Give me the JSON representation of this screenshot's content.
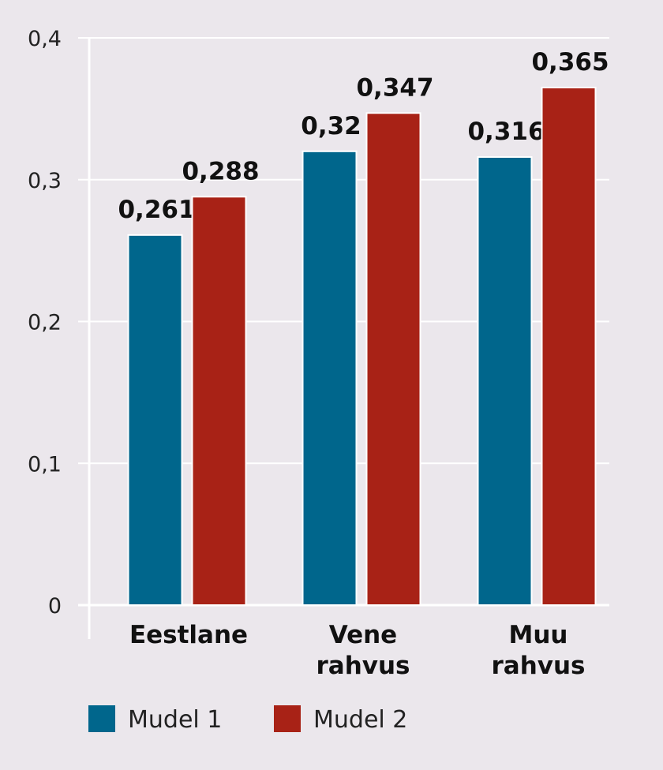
{
  "chart_data": {
    "type": "bar",
    "categories": [
      [
        "Eestlane"
      ],
      [
        "Vene",
        "rahvus"
      ],
      [
        "Muu",
        "rahvus"
      ]
    ],
    "series": [
      {
        "name": "Mudel 1",
        "color": "#00668c",
        "values": [
          0.261,
          0.32,
          0.316
        ],
        "labels": [
          "0,261",
          "0,32",
          "0,316"
        ]
      },
      {
        "name": "Mudel 2",
        "color": "#a82216",
        "values": [
          0.288,
          0.347,
          0.365
        ],
        "labels": [
          "0,288",
          "0,347",
          "0,365"
        ]
      }
    ],
    "yticks": [
      0,
      0.1,
      0.2,
      0.3,
      0.4
    ],
    "ytick_labels": [
      "0",
      "0,1",
      "0,2",
      "0,3",
      "0,4"
    ],
    "ylim": [
      0,
      0.4
    ],
    "grid": true,
    "legend": "bottom"
  }
}
